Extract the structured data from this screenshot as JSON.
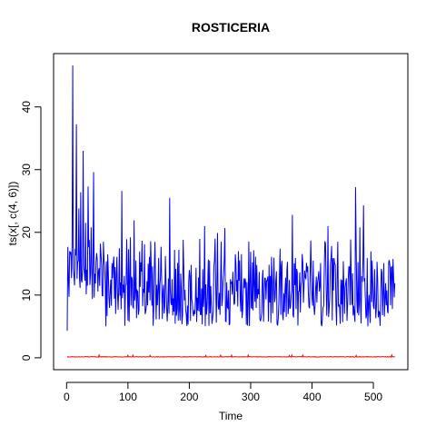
{
  "chart_data": {
    "type": "line",
    "title": "ROSTICERIA",
    "xlabel": "Time",
    "ylabel": "ts(x[, c(4, 6)])",
    "xlim": [
      -21.2,
      556.2
    ],
    "ylim": [
      -1.9,
      48.5
    ],
    "xticks": [
      0,
      100,
      200,
      300,
      400,
      500
    ],
    "yticks": [
      0,
      10,
      20,
      30,
      40
    ],
    "grid": false,
    "legend": "none",
    "colors": {
      "series1": "#0000ff",
      "series2": "#ff0000",
      "axis": "#000000"
    },
    "seed": 20240613,
    "n": 535,
    "peaks": [
      {
        "x": 1,
        "y": 4.3
      },
      {
        "x": 3,
        "y": 12.6
      },
      {
        "x": 6,
        "y": 16.6
      },
      {
        "x": 10,
        "y": 46.6
      },
      {
        "x": 16,
        "y": 37.2
      },
      {
        "x": 20,
        "y": 23.8
      },
      {
        "x": 23,
        "y": 26.4
      },
      {
        "x": 27,
        "y": 33.0
      },
      {
        "x": 31,
        "y": 21.5
      },
      {
        "x": 35,
        "y": 27.3
      },
      {
        "x": 40,
        "y": 20.8
      },
      {
        "x": 44,
        "y": 29.6
      },
      {
        "x": 50,
        "y": 15.6
      },
      {
        "x": 60,
        "y": 18.5
      },
      {
        "x": 67,
        "y": 16.5
      },
      {
        "x": 82,
        "y": 16.1
      },
      {
        "x": 90,
        "y": 26.6
      },
      {
        "x": 98,
        "y": 18.9
      },
      {
        "x": 104,
        "y": 19.2
      },
      {
        "x": 110,
        "y": 21.9
      },
      {
        "x": 121,
        "y": 15.2
      },
      {
        "x": 127,
        "y": 18.1
      },
      {
        "x": 135,
        "y": 16.1
      },
      {
        "x": 143,
        "y": 14.3
      },
      {
        "x": 155,
        "y": 12.3
      },
      {
        "x": 168,
        "y": 25.5
      },
      {
        "x": 178,
        "y": 14.2
      },
      {
        "x": 190,
        "y": 18.8
      },
      {
        "x": 203,
        "y": 14.8
      },
      {
        "x": 215,
        "y": 12.8
      },
      {
        "x": 225,
        "y": 21.0
      },
      {
        "x": 233,
        "y": 15.5
      },
      {
        "x": 240,
        "y": 14.5
      },
      {
        "x": 246,
        "y": 19.9
      },
      {
        "x": 252,
        "y": 18.5
      },
      {
        "x": 258,
        "y": 20.7
      },
      {
        "x": 268,
        "y": 11.9
      },
      {
        "x": 275,
        "y": 16.5
      },
      {
        "x": 290,
        "y": 11.1
      },
      {
        "x": 300,
        "y": 16.9
      },
      {
        "x": 310,
        "y": 14.8
      },
      {
        "x": 320,
        "y": 14.0
      },
      {
        "x": 334,
        "y": 16.1
      },
      {
        "x": 342,
        "y": 13.8
      },
      {
        "x": 350,
        "y": 14.6
      },
      {
        "x": 360,
        "y": 15.3
      },
      {
        "x": 368,
        "y": 22.8
      },
      {
        "x": 376,
        "y": 13.6
      },
      {
        "x": 388,
        "y": 13.9
      },
      {
        "x": 402,
        "y": 15.5
      },
      {
        "x": 414,
        "y": 15.1
      },
      {
        "x": 426,
        "y": 21.0
      },
      {
        "x": 436,
        "y": 15.9
      },
      {
        "x": 442,
        "y": 18.5
      },
      {
        "x": 451,
        "y": 15.4
      },
      {
        "x": 460,
        "y": 14.5
      },
      {
        "x": 471,
        "y": 27.2
      },
      {
        "x": 478,
        "y": 20.8
      },
      {
        "x": 484,
        "y": 24.3
      },
      {
        "x": 490,
        "y": 15.9
      },
      {
        "x": 498,
        "y": 15.5
      },
      {
        "x": 506,
        "y": 15.3
      },
      {
        "x": 514,
        "y": 13.6
      },
      {
        "x": 520,
        "y": 11.9
      },
      {
        "x": 525,
        "y": 15.3
      },
      {
        "x": 530,
        "y": 14.5
      },
      {
        "x": 535,
        "y": 11.9
      }
    ],
    "series": [
      {
        "name": "",
        "type": "line",
        "values_note": ""
      },
      {
        "name": "",
        "type": "line",
        "level": 0.15
      }
    ]
  }
}
